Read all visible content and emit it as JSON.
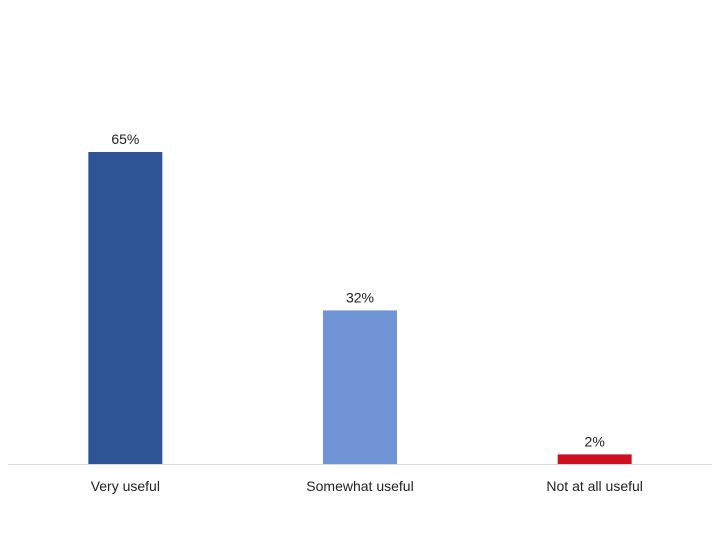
{
  "chart_data": {
    "type": "bar",
    "categories": [
      "Very useful",
      "Somewhat useful",
      "Not at all useful"
    ],
    "values": [
      65,
      32,
      2
    ],
    "data_labels": [
      "65%",
      "32%",
      "2%"
    ],
    "colors": [
      "#2F5597",
      "#7094D5",
      "#CC1020"
    ],
    "axis_color": "#D9D9D9",
    "ylim": [
      0,
      80
    ],
    "grid": false,
    "legend": "none"
  }
}
